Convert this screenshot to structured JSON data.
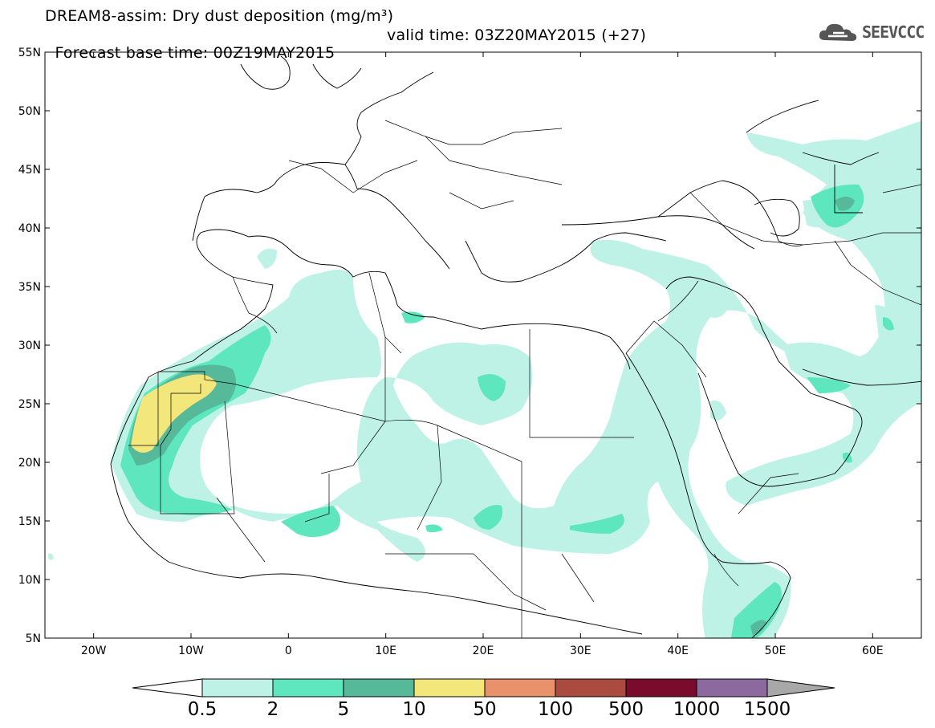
{
  "title": {
    "line1": "DREAM8-assim: Dry dust deposition (mg/m³)",
    "line2_base": "Forecast base time: 00Z19MAY2015",
    "line2_valid": "valid time: 03Z20MAY2015 (+27)"
  },
  "logo": {
    "text": "SEEVCCC",
    "icon": "cloud-icon"
  },
  "axes": {
    "lon_range": [
      -25,
      65
    ],
    "lat_range": [
      5,
      55
    ],
    "lat_labels": [
      "55N",
      "50N",
      "45N",
      "40N",
      "35N",
      "30N",
      "25N",
      "20N",
      "15N",
      "10N",
      "5N"
    ],
    "lat_values": [
      55,
      50,
      45,
      40,
      35,
      30,
      25,
      20,
      15,
      10,
      5
    ],
    "lon_labels": [
      "20W",
      "10W",
      "0",
      "10E",
      "20E",
      "30E",
      "40E",
      "50E",
      "60E"
    ],
    "lon_values": [
      -20,
      -10,
      0,
      10,
      20,
      30,
      40,
      50,
      60
    ]
  },
  "colorbar": {
    "labels": [
      "0.5",
      "2",
      "5",
      "10",
      "50",
      "100",
      "500",
      "1000",
      "1500"
    ],
    "colors": [
      "#bff2e6",
      "#5ee6be",
      "#55b99a",
      "#f3e67a",
      "#e9916b",
      "#ab4a3e",
      "#7a0b2d",
      "#8c6aa0",
      "#a8a8a8"
    ],
    "low_extend_color": "#ffffff",
    "high_extend_color": "#a8a8a8"
  },
  "legend_colors": {
    "light": "#bff2e6",
    "medium": "#5ee6be",
    "dark": "#55b99a",
    "yellow": "#f3e67a"
  }
}
